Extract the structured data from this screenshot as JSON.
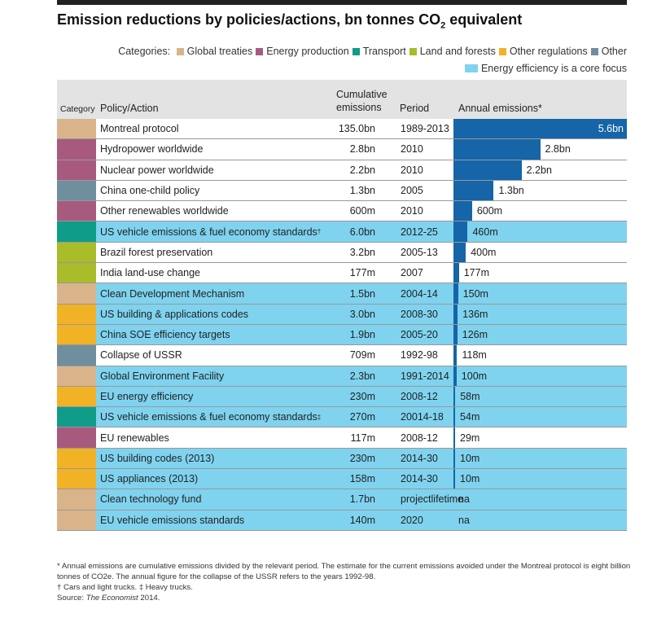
{
  "title_main": "Emission reductions by policies/actions, bn tonnes CO",
  "title_sub": "2",
  "title_end": " equivalent",
  "legend": {
    "label": "Categories:",
    "items": [
      {
        "name": "Global treaties",
        "color": "#d9b48a"
      },
      {
        "name": "Energy production",
        "color": "#a85a7e"
      },
      {
        "name": "Transport",
        "color": "#0f9c88"
      },
      {
        "name": "Land and forests",
        "color": "#a9bc2a"
      },
      {
        "name": "Other regulations",
        "color": "#f2b225"
      },
      {
        "name": "Other",
        "color": "#6f8f9e"
      }
    ],
    "core_label": "Energy efficiency is a core focus",
    "core_color": "#7fd3ef"
  },
  "headers": {
    "category": "Category",
    "policy": "Policy/Action",
    "cumulative_1": "Cumulative",
    "cumulative_2": "emissions",
    "period": "Period",
    "annual": "Annual emissions*"
  },
  "chart_data": {
    "type": "bar",
    "orientation": "horizontal",
    "title": "Emission reductions by policies/actions, bn tonnes CO2 equivalent",
    "value_unit": "bn tonnes CO2e per year",
    "xlim": [
      0,
      5.6
    ],
    "rows": [
      {
        "policy": "Montreal protocol",
        "sup": "",
        "category": "Global treaties",
        "core": false,
        "cumulative": "135.0bn",
        "period": "1989-2013",
        "period2": "",
        "annual": 5.6,
        "annual_label": "5.6bn"
      },
      {
        "policy": "Hydropower worldwide",
        "sup": "",
        "category": "Energy production",
        "core": false,
        "cumulative": "2.8bn",
        "period": "2010",
        "period2": "",
        "annual": 2.8,
        "annual_label": "2.8bn"
      },
      {
        "policy": "Nuclear power worldwide",
        "sup": "",
        "category": "Energy production",
        "core": false,
        "cumulative": "2.2bn",
        "period": "2010",
        "period2": "",
        "annual": 2.2,
        "annual_label": "2.2bn"
      },
      {
        "policy": "China one-child policy",
        "sup": "",
        "category": "Other",
        "core": false,
        "cumulative": "1.3bn",
        "period": "2005",
        "period2": "",
        "annual": 1.3,
        "annual_label": "1.3bn"
      },
      {
        "policy": "Other renewables worldwide",
        "sup": "",
        "category": "Energy production",
        "core": false,
        "cumulative": "600m",
        "period": "2010",
        "period2": "",
        "annual": 0.6,
        "annual_label": "600m"
      },
      {
        "policy": "US vehicle emissions & fuel economy standards",
        "sup": "†",
        "category": "Transport",
        "core": true,
        "cumulative": "6.0bn",
        "period": "2012-25",
        "period2": "",
        "annual": 0.46,
        "annual_label": "460m"
      },
      {
        "policy": "Brazil forest preservation",
        "sup": "",
        "category": "Land and forests",
        "core": false,
        "cumulative": "3.2bn",
        "period": "2005-13",
        "period2": "",
        "annual": 0.4,
        "annual_label": "400m"
      },
      {
        "policy": "India land-use change",
        "sup": "",
        "category": "Land and forests",
        "core": false,
        "cumulative": "177m",
        "period": "2007",
        "period2": "",
        "annual": 0.177,
        "annual_label": "177m"
      },
      {
        "policy": "Clean Development Mechanism",
        "sup": "",
        "category": "Global treaties",
        "core": true,
        "cumulative": "1.5bn",
        "period": "2004-14",
        "period2": "",
        "annual": 0.15,
        "annual_label": "150m"
      },
      {
        "policy": "US building & applications codes",
        "sup": "",
        "category": "Other regulations",
        "core": true,
        "cumulative": "3.0bn",
        "period": "2008-30",
        "period2": "",
        "annual": 0.136,
        "annual_label": "136m"
      },
      {
        "policy": "China SOE efficiency targets",
        "sup": "",
        "category": "Other regulations",
        "core": true,
        "cumulative": "1.9bn",
        "period": "2005-20",
        "period2": "",
        "annual": 0.126,
        "annual_label": "126m"
      },
      {
        "policy": "Collapse of USSR",
        "sup": "",
        "category": "Other",
        "core": false,
        "cumulative": "709m",
        "period": "1992-98",
        "period2": "",
        "annual": 0.118,
        "annual_label": "118m"
      },
      {
        "policy": "Global Environment Facility",
        "sup": "",
        "category": "Global treaties",
        "core": true,
        "cumulative": "2.3bn",
        "period": "1991-2014",
        "period2": "",
        "annual": 0.1,
        "annual_label": "100m"
      },
      {
        "policy": "EU energy efficiency",
        "sup": "",
        "category": "Other regulations",
        "core": true,
        "cumulative": "230m",
        "period": "2008-12",
        "period2": "",
        "annual": 0.058,
        "annual_label": "58m"
      },
      {
        "policy": "US vehicle emissions & fuel economy standards",
        "sup": "‡",
        "category": "Transport",
        "core": true,
        "cumulative": "270m",
        "period": "20014-18",
        "period2": "",
        "annual": 0.054,
        "annual_label": "54m"
      },
      {
        "policy": "EU renewables",
        "sup": "",
        "category": "Energy production",
        "core": false,
        "cumulative": "117m",
        "period": "2008-12",
        "period2": "",
        "annual": 0.029,
        "annual_label": "29m"
      },
      {
        "policy": "US building codes (2013)",
        "sup": "",
        "category": "Other regulations",
        "core": true,
        "cumulative": "230m",
        "period": "2014-30",
        "period2": "",
        "annual": 0.01,
        "annual_label": "10m"
      },
      {
        "policy": "US appliances (2013)",
        "sup": "",
        "category": "Other regulations",
        "core": true,
        "cumulative": "158m",
        "period": "2014-30",
        "period2": "",
        "annual": 0.01,
        "annual_label": "10m"
      },
      {
        "policy": "Clean technology fund",
        "sup": "",
        "category": "Global treaties",
        "core": true,
        "cumulative": "1.7bn",
        "period": "project",
        "period2": "lifetime",
        "annual": null,
        "annual_label": "na"
      },
      {
        "policy": "EU vehicle emissions standards",
        "sup": "",
        "category": "Global treaties",
        "core": true,
        "cumulative": "140m",
        "period": "2020",
        "period2": "",
        "annual": null,
        "annual_label": "na"
      }
    ]
  },
  "notes": {
    "line1": "* Annual emissions are cumulative emissions divided by the relevant period. The estimate for the current emissions avoided under the Montreal protocol is eight billion",
    "line2": "tonnes of CO2e. The annual figure for the collapse of the USSR refers to the years 1992-98.",
    "line3": "† Cars and light trucks. ‡ Heavy trucks.",
    "source_label": "Source: ",
    "source_name": "The Economist",
    "source_year": " 2014."
  },
  "colors": {
    "bar": "#1565a8",
    "header": "#e3e3e3"
  }
}
